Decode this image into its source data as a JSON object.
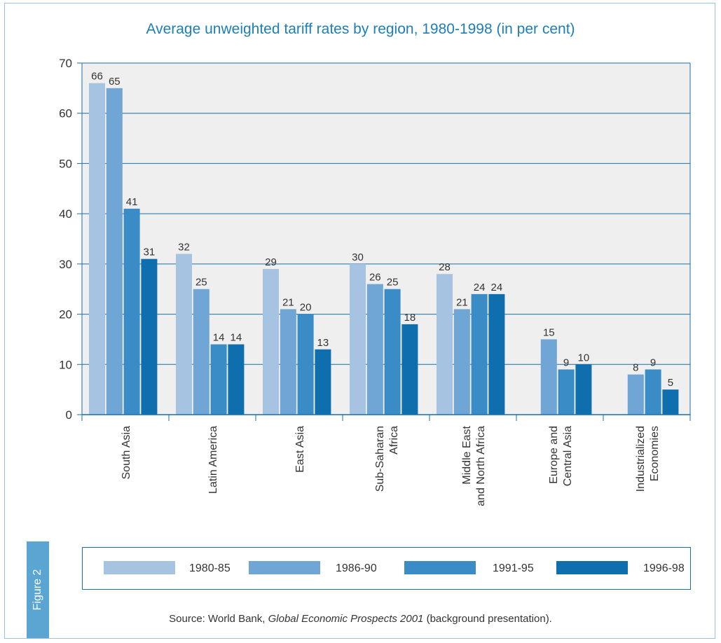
{
  "figure_label": "Figure 2",
  "source": {
    "prefix": "Source: World Bank,",
    "title": "Global Economic Prospects 2001",
    "suffix": "(background presentation)."
  },
  "colors": {
    "title": "#1c7fb6",
    "series": [
      "#a6c4e2",
      "#6fa6d5",
      "#3a8cc6",
      "#0e6eae"
    ],
    "plot_bg": "#efefef",
    "grid": "#1a6fa6"
  },
  "chart_data": {
    "type": "bar",
    "title": "Average unweighted tariff rates by region, 1980-1998 (in per cent)",
    "ylim": [
      0,
      70
    ],
    "yticks": [
      0,
      10,
      20,
      30,
      40,
      50,
      60,
      70
    ],
    "grid": true,
    "legend_position": "bottom",
    "categories": [
      [
        "South Asia"
      ],
      [
        "Latin America"
      ],
      [
        "East Asia"
      ],
      [
        "Sub-Saharan",
        "Africa"
      ],
      [
        "Middle East",
        "and North Africa"
      ],
      [
        "Europe and",
        "Central Asia"
      ],
      [
        "Industrialized",
        "Economies"
      ]
    ],
    "series": [
      {
        "name": "1980-85",
        "values": [
          66,
          32,
          29,
          30,
          28,
          null,
          null
        ]
      },
      {
        "name": "1986-90",
        "values": [
          65,
          25,
          21,
          26,
          21,
          15,
          8
        ]
      },
      {
        "name": "1991-95",
        "values": [
          41,
          14,
          20,
          25,
          24,
          9,
          9
        ]
      },
      {
        "name": "1996-98",
        "values": [
          31,
          14,
          13,
          18,
          24,
          10,
          5
        ]
      }
    ]
  }
}
